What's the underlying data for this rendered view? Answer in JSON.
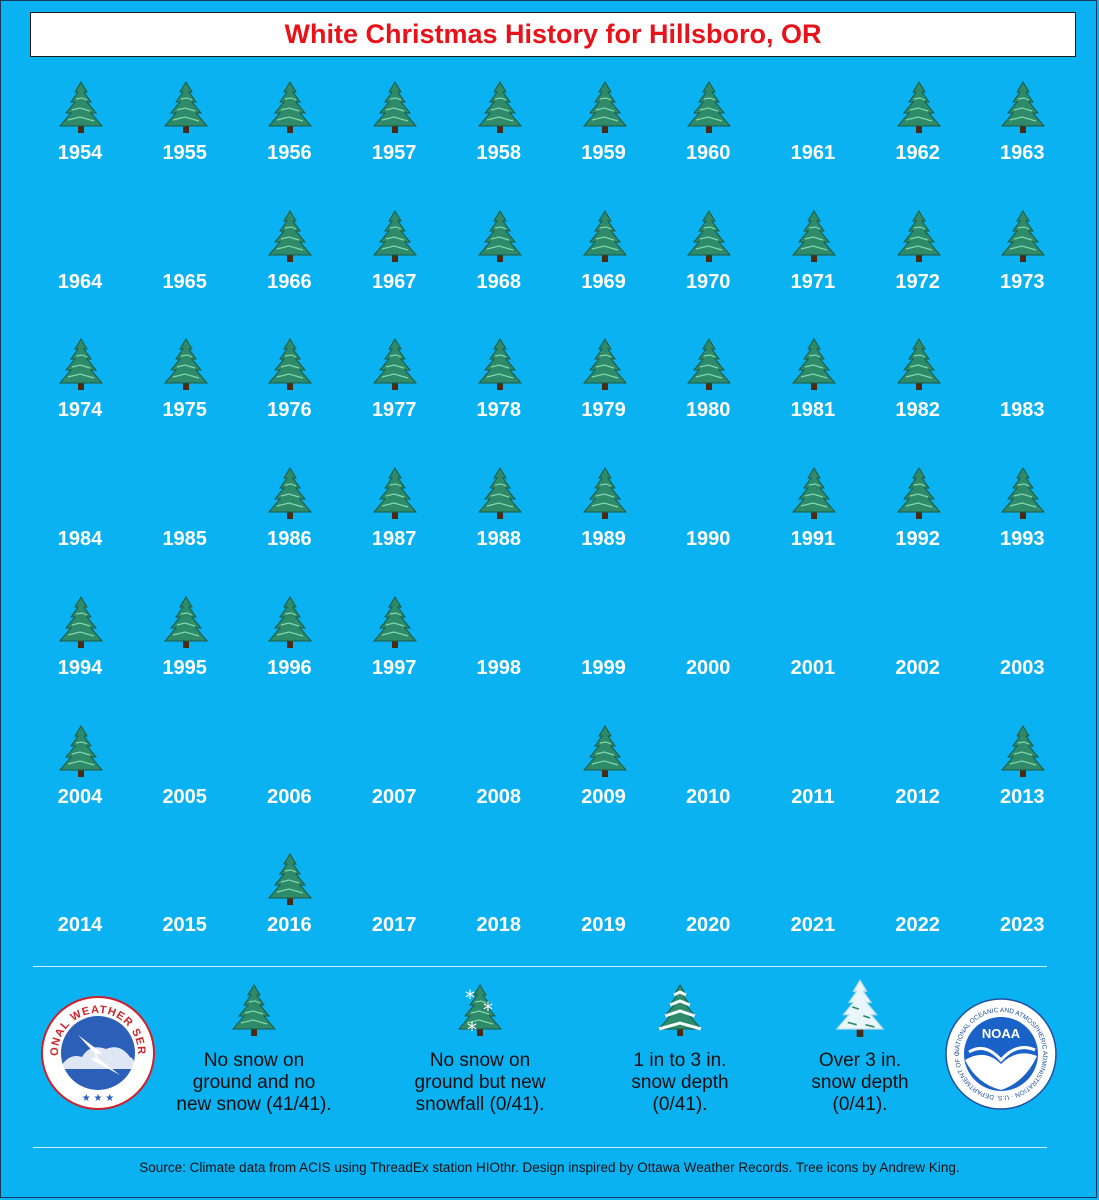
{
  "title": "White Christmas History for Hillsboro, OR",
  "colors": {
    "background": "#0bb2f2",
    "title_text": "#e8121a",
    "year_text": "#ffffff"
  },
  "years": [
    {
      "year": "1954",
      "tree": true
    },
    {
      "year": "1955",
      "tree": true
    },
    {
      "year": "1956",
      "tree": true
    },
    {
      "year": "1957",
      "tree": true
    },
    {
      "year": "1958",
      "tree": true
    },
    {
      "year": "1959",
      "tree": true
    },
    {
      "year": "1960",
      "tree": true
    },
    {
      "year": "1961",
      "tree": false
    },
    {
      "year": "1962",
      "tree": true
    },
    {
      "year": "1963",
      "tree": true
    },
    {
      "year": "1964",
      "tree": false
    },
    {
      "year": "1965",
      "tree": false
    },
    {
      "year": "1966",
      "tree": true
    },
    {
      "year": "1967",
      "tree": true
    },
    {
      "year": "1968",
      "tree": true
    },
    {
      "year": "1969",
      "tree": true
    },
    {
      "year": "1970",
      "tree": true
    },
    {
      "year": "1971",
      "tree": true
    },
    {
      "year": "1972",
      "tree": true
    },
    {
      "year": "1973",
      "tree": true
    },
    {
      "year": "1974",
      "tree": true
    },
    {
      "year": "1975",
      "tree": true
    },
    {
      "year": "1976",
      "tree": true
    },
    {
      "year": "1977",
      "tree": true
    },
    {
      "year": "1978",
      "tree": true
    },
    {
      "year": "1979",
      "tree": true
    },
    {
      "year": "1980",
      "tree": true
    },
    {
      "year": "1981",
      "tree": true
    },
    {
      "year": "1982",
      "tree": true
    },
    {
      "year": "1983",
      "tree": false
    },
    {
      "year": "1984",
      "tree": false
    },
    {
      "year": "1985",
      "tree": false
    },
    {
      "year": "1986",
      "tree": true
    },
    {
      "year": "1987",
      "tree": true
    },
    {
      "year": "1988",
      "tree": true
    },
    {
      "year": "1989",
      "tree": true
    },
    {
      "year": "1990",
      "tree": false
    },
    {
      "year": "1991",
      "tree": true
    },
    {
      "year": "1992",
      "tree": true
    },
    {
      "year": "1993",
      "tree": true
    },
    {
      "year": "1994",
      "tree": true
    },
    {
      "year": "1995",
      "tree": true
    },
    {
      "year": "1996",
      "tree": true
    },
    {
      "year": "1997",
      "tree": true
    },
    {
      "year": "1998",
      "tree": false
    },
    {
      "year": "1999",
      "tree": false
    },
    {
      "year": "2000",
      "tree": false
    },
    {
      "year": "2001",
      "tree": false
    },
    {
      "year": "2002",
      "tree": false
    },
    {
      "year": "2003",
      "tree": false
    },
    {
      "year": "2004",
      "tree": true
    },
    {
      "year": "2005",
      "tree": false
    },
    {
      "year": "2006",
      "tree": false
    },
    {
      "year": "2007",
      "tree": false
    },
    {
      "year": "2008",
      "tree": false
    },
    {
      "year": "2009",
      "tree": true
    },
    {
      "year": "2010",
      "tree": false
    },
    {
      "year": "2011",
      "tree": false
    },
    {
      "year": "2012",
      "tree": false
    },
    {
      "year": "2013",
      "tree": true
    },
    {
      "year": "2014",
      "tree": false
    },
    {
      "year": "2015",
      "tree": false
    },
    {
      "year": "2016",
      "tree": true
    },
    {
      "year": "2017",
      "tree": false
    },
    {
      "year": "2018",
      "tree": false
    },
    {
      "year": "2019",
      "tree": false
    },
    {
      "year": "2020",
      "tree": false
    },
    {
      "year": "2021",
      "tree": false
    },
    {
      "year": "2022",
      "tree": false
    },
    {
      "year": "2023",
      "tree": false
    }
  ],
  "legend": {
    "item1": [
      "No snow on",
      "ground and no",
      "new snow (41/41)."
    ],
    "item2": [
      "No snow on",
      "ground but new",
      "snowfall (0/41)."
    ],
    "item3": [
      "1 in to 3 in.",
      "snow depth",
      "(0/41)."
    ],
    "item4": [
      "Over 3 in.",
      "snow depth",
      "(0/41)."
    ]
  },
  "logos": {
    "nws_text": "NATIONAL WEATHER SERVICE",
    "noaa_text": "NOAA",
    "noaa_ring_text": "NATIONAL OCEANIC AND ATMOSPHERIC ADMINISTRATION · U.S. DEPARTMENT OF COMMERCE"
  },
  "source": "Source: Climate data from ACIS using ThreadEx station HIOthr. Design inspired by Ottawa Weather Records. Tree icons by Andrew King."
}
